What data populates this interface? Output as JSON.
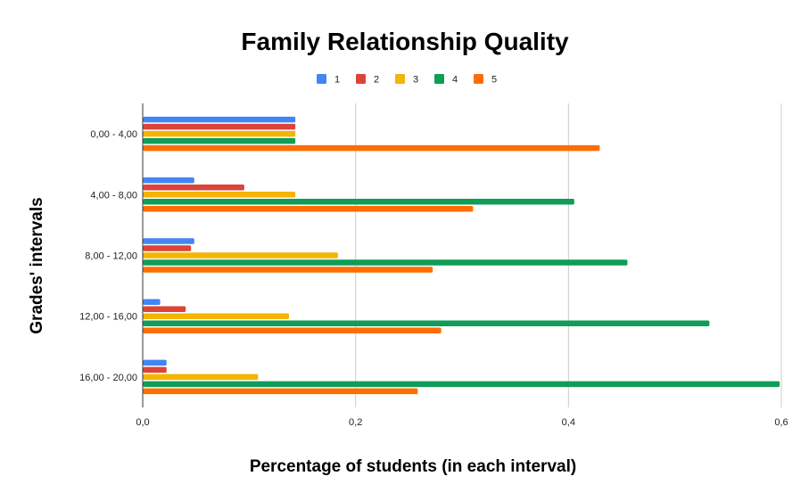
{
  "chart_data": {
    "type": "bar",
    "orientation": "horizontal",
    "title": "Family Relationship Quality",
    "xlabel": "Percentage of students (in each interval)",
    "ylabel": "Grades' intervals",
    "categories": [
      "0,00 - 4,00",
      "4,00 - 8,00",
      "8,00 - 12,00",
      "12,00 - 16,00",
      "16,00 - 20,00"
    ],
    "x_ticks": [
      "0,0",
      "0,2",
      "0,4",
      "0,6"
    ],
    "x_tick_values": [
      0,
      0.2,
      0.4,
      0.6
    ],
    "xlim": [
      0,
      0.6
    ],
    "grid": true,
    "legend_position": "top",
    "series": [
      {
        "name": "1",
        "color": "#4285f4",
        "values": [
          0.143,
          0.048,
          0.048,
          0.016,
          0.022
        ]
      },
      {
        "name": "2",
        "color": "#db4437",
        "values": [
          0.143,
          0.095,
          0.045,
          0.04,
          0.022
        ]
      },
      {
        "name": "3",
        "color": "#f4b400",
        "values": [
          0.143,
          0.143,
          0.183,
          0.137,
          0.108
        ]
      },
      {
        "name": "4",
        "color": "#0f9d58",
        "values": [
          0.143,
          0.405,
          0.455,
          0.532,
          0.598
        ]
      },
      {
        "name": "5",
        "color": "#ff6d01",
        "values": [
          0.429,
          0.31,
          0.272,
          0.28,
          0.258
        ]
      }
    ]
  }
}
